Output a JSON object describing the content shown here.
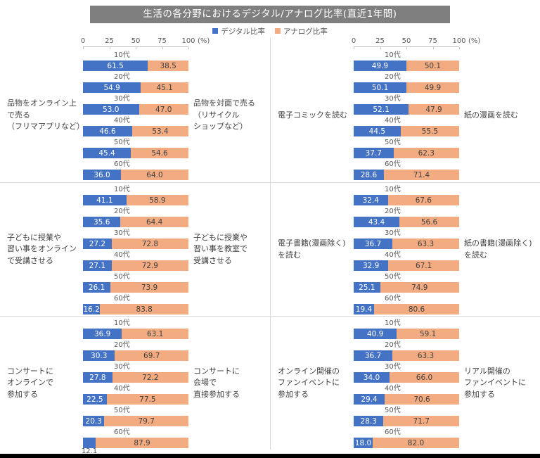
{
  "title": "生活の各分野におけるデジタル/アナログ比率(直近1年間)",
  "legend": {
    "digital": "デジタル比率",
    "analog": "アナログ比率"
  },
  "axis": {
    "ticks": [
      0,
      25,
      50,
      75,
      100
    ],
    "unit": "(%)"
  },
  "colors": {
    "digital": "#4472c4",
    "analog": "#f3ab82",
    "title_bg": "#7f7f7f",
    "grid_line": "#d9d9d9"
  },
  "chart_data": {
    "type": "bar",
    "orientation": "horizontal",
    "stacked": true,
    "title": "生活の各分野におけるデジタル/アナログ比率(直近1年間)",
    "value_unit": "%",
    "xlim": [
      0,
      100
    ],
    "x_ticks": [
      0,
      25,
      50,
      75,
      100
    ],
    "categories": [
      "10代",
      "20代",
      "30代",
      "40代",
      "50代",
      "60代"
    ],
    "series_names": [
      "デジタル比率",
      "アナログ比率"
    ],
    "legend_position": "top",
    "panels": [
      {
        "digital_label": "品物をオンライン上\nで売る\n（フリマアプリなど）",
        "analog_label": "品物を対面で売る\n（リサイクル\nショップなど）",
        "digital": [
          61.5,
          54.9,
          53.0,
          46.6,
          45.4,
          36.0
        ],
        "analog": [
          38.5,
          45.1,
          47.0,
          53.4,
          54.6,
          64.0
        ]
      },
      {
        "digital_label": "電子コミックを読む",
        "analog_label": "紙の漫画を読む",
        "digital": [
          49.9,
          50.1,
          52.1,
          44.5,
          37.7,
          28.6
        ],
        "analog": [
          50.1,
          49.9,
          47.9,
          55.5,
          62.3,
          71.4
        ]
      },
      {
        "digital_label": "子どもに授業や\n習い事をオンライン\nで受講させる",
        "analog_label": "子どもに授業や\n習い事を教室で\n受講させる",
        "digital": [
          41.1,
          35.6,
          27.2,
          27.1,
          26.1,
          16.2
        ],
        "analog": [
          58.9,
          64.4,
          72.8,
          72.9,
          73.9,
          83.8
        ]
      },
      {
        "digital_label": "電子書籍(漫画除く)\nを読む",
        "analog_label": "紙の書籍(漫画除く)\nを読む",
        "digital": [
          32.4,
          43.4,
          36.7,
          32.9,
          25.1,
          19.4
        ],
        "analog": [
          67.6,
          56.6,
          63.3,
          67.1,
          74.9,
          80.6
        ]
      },
      {
        "digital_label": "コンサートに\nオンラインで\n参加する",
        "analog_label": "コンサートに\n会場で\n直接参加する",
        "digital": [
          36.9,
          30.3,
          27.8,
          22.5,
          20.3,
          12.1
        ],
        "analog": [
          63.1,
          69.7,
          72.2,
          77.5,
          79.7,
          87.9
        ]
      },
      {
        "digital_label": "オンライン開催の\nファンイベントに\n参加する",
        "analog_label": "リアル開催の\nファンイベントに\n参加する",
        "digital": [
          40.9,
          36.7,
          34.0,
          29.4,
          28.3,
          18.0
        ],
        "analog": [
          59.1,
          63.3,
          66.0,
          70.6,
          71.7,
          82.0
        ]
      }
    ]
  }
}
